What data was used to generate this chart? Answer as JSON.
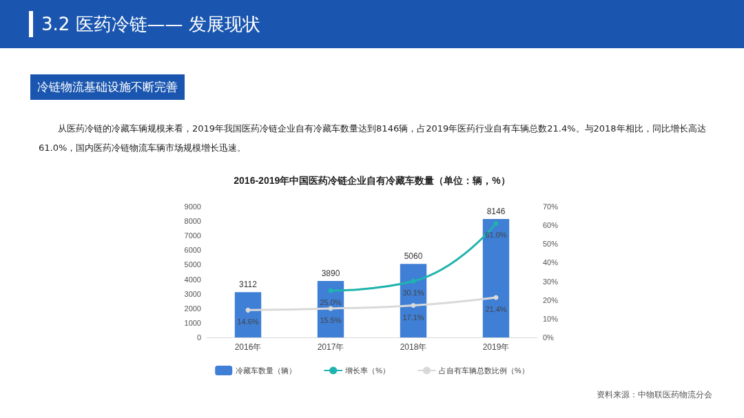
{
  "chart_data": {
    "type": "bar",
    "title": "2016-2019年中国医药冷链企业自有冷藏车数量（单位：辆，%）",
    "annotations": [
      "3.2 医药冷链—— 发展现状",
      "冷链物流基础设施不断完善",
      "从医药冷链的冷藏车辆规模来看，2019年我国医药冷链企业自有冷藏车数量达到8146辆，占2019年医药行业自有车辆总数21.4%。与2018年相比，同比增长高达61.0%，国内医药冷链物流车辆市场规模增长迅速。",
      "资料来源：中物联医药物流分会"
    ],
    "categories": [
      "2016年",
      "2017年",
      "2018年",
      "2019年"
    ],
    "series": [
      {
        "name": "冷藏车数量（辆）",
        "color": "#3f7fd6",
        "values": [
          3112,
          3890,
          5060,
          8146
        ]
      },
      {
        "name": "增长率（%）",
        "type": "line",
        "axis": "y2",
        "color": "#1fb3ad",
        "values": [
          null,
          25.0,
          30.1,
          61.0
        ],
        "value_labels": [
          null,
          "25.0%",
          "30.1%",
          "61.0%"
        ]
      },
      {
        "name": "占自有车辆总数比例（%）",
        "type": "line",
        "axis": "y2",
        "color": "#d9d9d9",
        "values": [
          14.6,
          15.5,
          17.1,
          21.4
        ],
        "value_labels": [
          "14.6%",
          "15.5%",
          "17.1%",
          "21.4%"
        ]
      }
    ],
    "data_labels": true,
    "ylim": [
      0,
      9000
    ],
    "yticks": [
      0,
      1000,
      2000,
      3000,
      4000,
      5000,
      6000,
      7000,
      8000,
      9000
    ],
    "y2lim": [
      0,
      70
    ],
    "y2ticks": [
      {
        "value": 0,
        "label": "0%"
      },
      {
        "value": 10,
        "label": "10%"
      },
      {
        "value": 20,
        "label": "20%"
      },
      {
        "value": 30,
        "label": "30%"
      },
      {
        "value": 40,
        "label": "40%"
      },
      {
        "value": 50,
        "label": "50%"
      },
      {
        "value": 60,
        "label": "60%"
      },
      {
        "value": 70,
        "label": "70%"
      }
    ],
    "grid": false,
    "legend": "bottom",
    "marker": "circle",
    "line_style": "solid"
  }
}
